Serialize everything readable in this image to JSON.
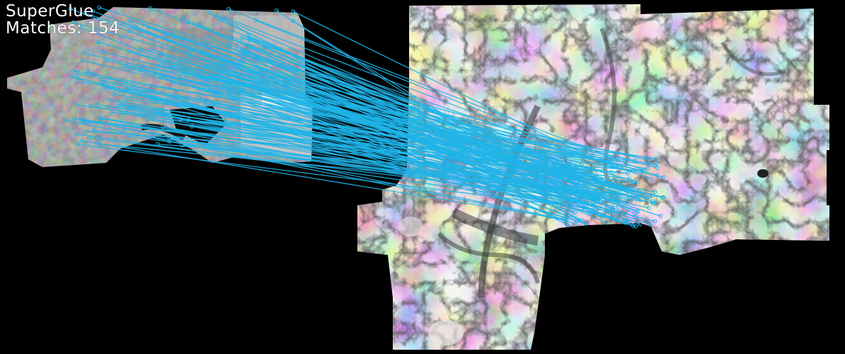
{
  "overlay": {
    "method": "SuperGlue",
    "matches_text": "Matches: 154"
  },
  "match_count": 154,
  "colors": {
    "background": "#000000",
    "match_line": "#1fb4e8",
    "keypoint": "#1fb4e8",
    "text": "#ffffff"
  },
  "images": {
    "left": "aerial-orthophoto",
    "right": "digital-elevation-model"
  }
}
